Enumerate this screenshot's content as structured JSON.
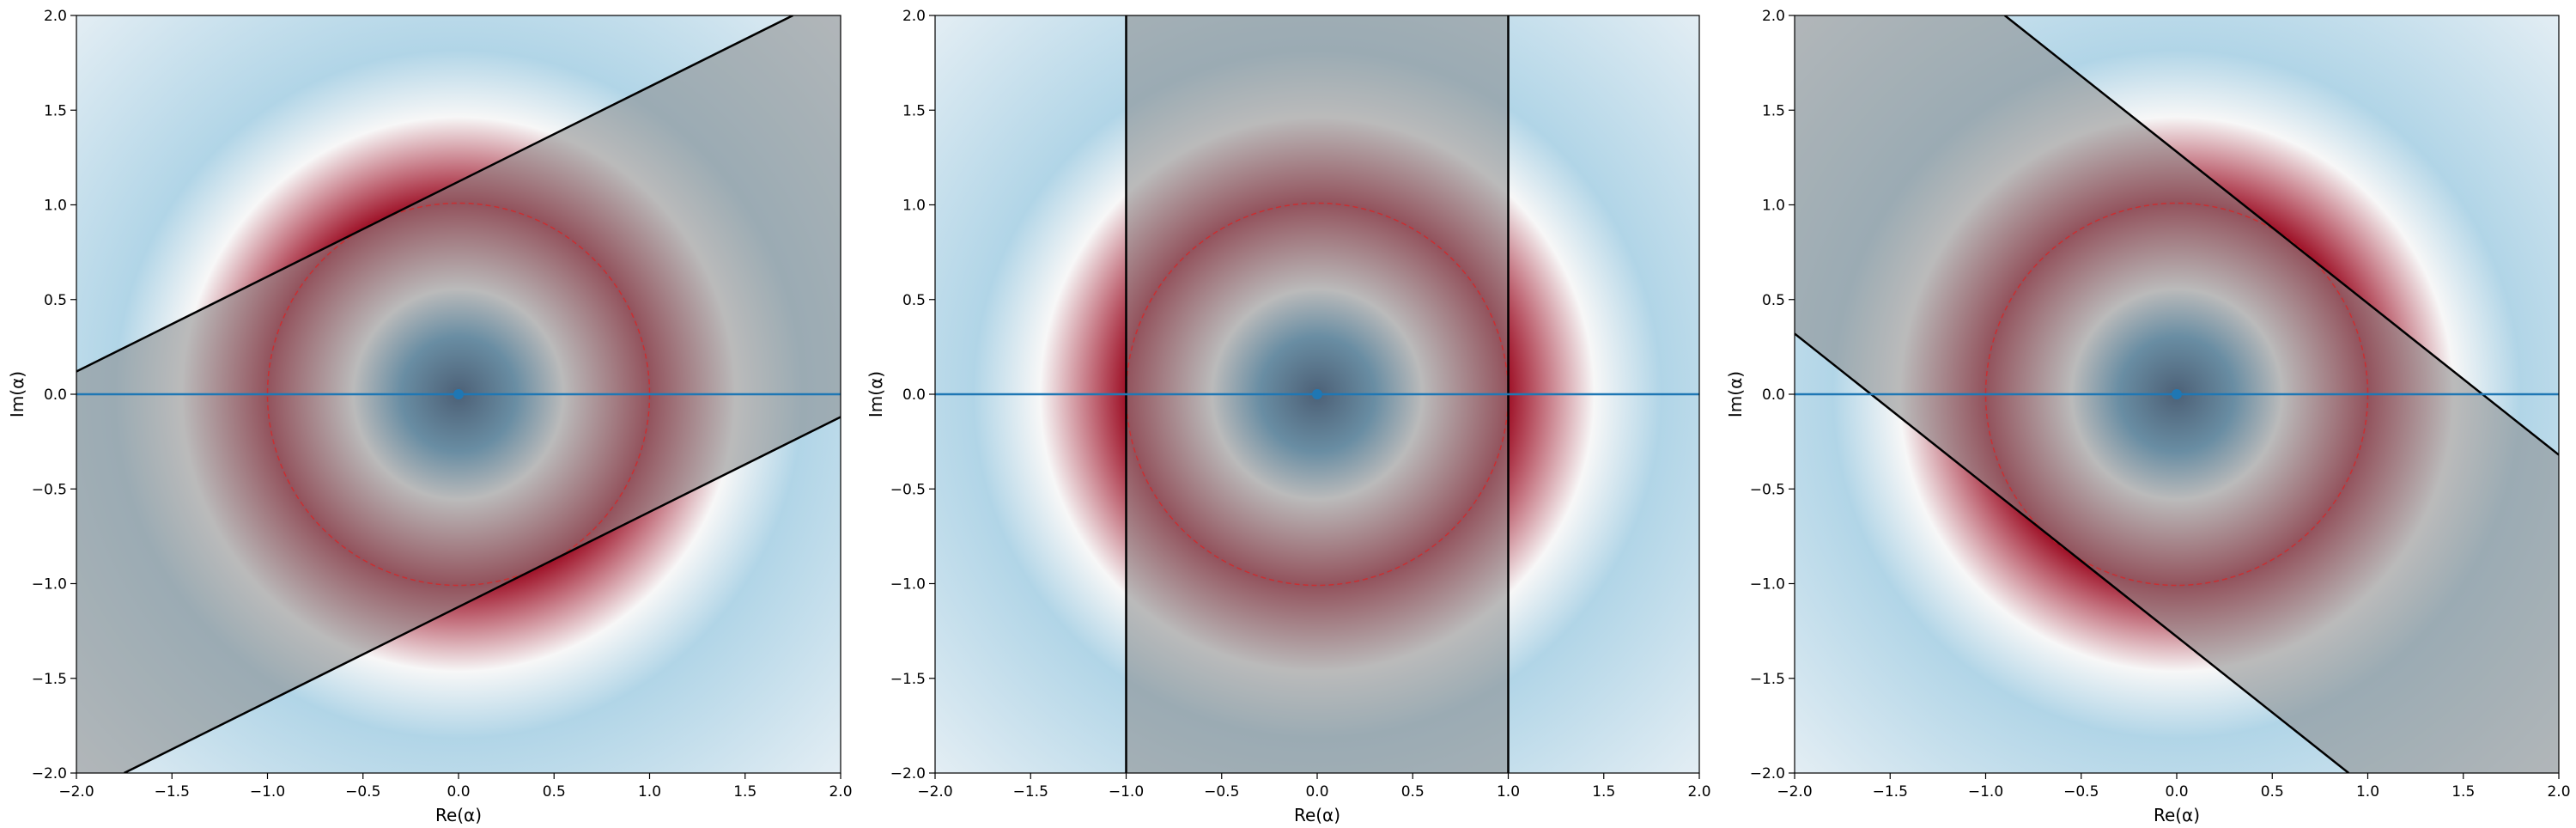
{
  "chart_data": [
    {
      "type": "heatmap",
      "title": "",
      "xlabel": "Re(α)",
      "ylabel": "Im(α)",
      "xlim": [
        -2.0,
        2.0
      ],
      "ylim": [
        -2.0,
        2.0
      ],
      "x_ticks": [
        -2.0,
        -1.5,
        -1.0,
        -0.5,
        0.0,
        0.5,
        1.0,
        1.5,
        2.0
      ],
      "y_ticks": [
        -2.0,
        -1.5,
        -1.0,
        -0.5,
        0.0,
        0.5,
        1.0,
        1.5,
        2.0
      ],
      "x_tick_labels": [
        "−2.0",
        "−1.5",
        "−1.0",
        "−0.5",
        "0.0",
        "0.5",
        "1.0",
        "1.5",
        "2.0"
      ],
      "y_tick_labels": [
        "−2.0",
        "−1.5",
        "−1.0",
        "−0.5",
        "0.0",
        "0.5",
        "1.0",
        "1.5",
        "2.0"
      ],
      "grid": false,
      "colormap": "RdBu_r",
      "radial_profile": {
        "r": [
          0.0,
          0.3,
          0.55,
          1.0,
          1.45,
          1.8,
          2.83
        ],
        "values": [
          -1.0,
          -0.6,
          0.0,
          0.85,
          0.0,
          -0.3,
          -0.1
        ]
      },
      "circle": {
        "center": [
          0.0,
          0.0
        ],
        "radius": 1.0,
        "color": "#d62728",
        "style": "dashed"
      },
      "horizontal_line": {
        "y": 0.0,
        "color": "#1f77b4"
      },
      "point": {
        "x": 0.0,
        "y": 0.0,
        "color": "#1f77b4"
      },
      "band": {
        "lines": [
          {
            "x": [
              -2.0,
              1.75
            ],
            "y": [
              0.12,
              2.0
            ]
          },
          {
            "x": [
              -1.75,
              2.0
            ],
            "y": [
              -2.0,
              -0.12
            ]
          }
        ],
        "shade": "#888888",
        "line_color": "#000000"
      }
    },
    {
      "type": "heatmap",
      "title": "",
      "xlabel": "Re(α)",
      "ylabel": "Im(α)",
      "xlim": [
        -2.0,
        2.0
      ],
      "ylim": [
        -2.0,
        2.0
      ],
      "x_ticks": [
        -2.0,
        -1.5,
        -1.0,
        -0.5,
        0.0,
        0.5,
        1.0,
        1.5,
        2.0
      ],
      "y_ticks": [
        -2.0,
        -1.5,
        -1.0,
        -0.5,
        0.0,
        0.5,
        1.0,
        1.5,
        2.0
      ],
      "x_tick_labels": [
        "−2.0",
        "−1.5",
        "−1.0",
        "−0.5",
        "0.0",
        "0.5",
        "1.0",
        "1.5",
        "2.0"
      ],
      "y_tick_labels": [
        "−2.0",
        "−1.5",
        "−1.0",
        "−0.5",
        "0.0",
        "0.5",
        "1.0",
        "1.5",
        "2.0"
      ],
      "grid": false,
      "colormap": "RdBu_r",
      "radial_profile": {
        "r": [
          0.0,
          0.3,
          0.55,
          1.0,
          1.45,
          1.8,
          2.83
        ],
        "values": [
          -1.0,
          -0.6,
          0.0,
          0.85,
          0.0,
          -0.3,
          -0.1
        ]
      },
      "circle": {
        "center": [
          0.0,
          0.0
        ],
        "radius": 1.0,
        "color": "#d62728",
        "style": "dashed"
      },
      "horizontal_line": {
        "y": 0.0,
        "color": "#1f77b4"
      },
      "point": {
        "x": 0.0,
        "y": 0.0,
        "color": "#1f77b4"
      },
      "band": {
        "lines": [
          {
            "x": [
              -1.0,
              -1.0
            ],
            "y": [
              -2.0,
              2.0
            ]
          },
          {
            "x": [
              1.0,
              1.0
            ],
            "y": [
              -2.0,
              2.0
            ]
          }
        ],
        "shade": "#888888",
        "line_color": "#000000"
      }
    },
    {
      "type": "heatmap",
      "title": "",
      "xlabel": "Re(α)",
      "ylabel": "Im(α)",
      "xlim": [
        -2.0,
        2.0
      ],
      "ylim": [
        -2.0,
        2.0
      ],
      "x_ticks": [
        -2.0,
        -1.5,
        -1.0,
        -0.5,
        0.0,
        0.5,
        1.0,
        1.5,
        2.0
      ],
      "y_ticks": [
        -2.0,
        -1.5,
        -1.0,
        -0.5,
        0.0,
        0.5,
        1.0,
        1.5,
        2.0
      ],
      "x_tick_labels": [
        "−2.0",
        "−1.5",
        "−1.0",
        "−0.5",
        "0.0",
        "0.5",
        "1.0",
        "1.5",
        "2.0"
      ],
      "y_tick_labels": [
        "−2.0",
        "−1.5",
        "−1.0",
        "−0.5",
        "0.0",
        "0.5",
        "1.0",
        "1.5",
        "2.0"
      ],
      "grid": false,
      "colormap": "RdBu_r",
      "radial_profile": {
        "r": [
          0.0,
          0.3,
          0.55,
          1.0,
          1.45,
          1.8,
          2.83
        ],
        "values": [
          -1.0,
          -0.6,
          0.0,
          0.85,
          0.0,
          -0.3,
          -0.1
        ]
      },
      "circle": {
        "center": [
          0.0,
          0.0
        ],
        "radius": 1.0,
        "color": "#d62728",
        "style": "dashed"
      },
      "horizontal_line": {
        "y": 0.0,
        "color": "#1f77b4"
      },
      "point": {
        "x": 0.0,
        "y": 0.0,
        "color": "#1f77b4"
      },
      "band": {
        "lines": [
          {
            "x": [
              -0.9,
              2.0
            ],
            "y": [
              2.0,
              -0.32
            ]
          },
          {
            "x": [
              -2.0,
              0.9
            ],
            "y": [
              0.32,
              -2.0
            ]
          }
        ],
        "shade": "#888888",
        "line_color": "#000000"
      }
    }
  ]
}
